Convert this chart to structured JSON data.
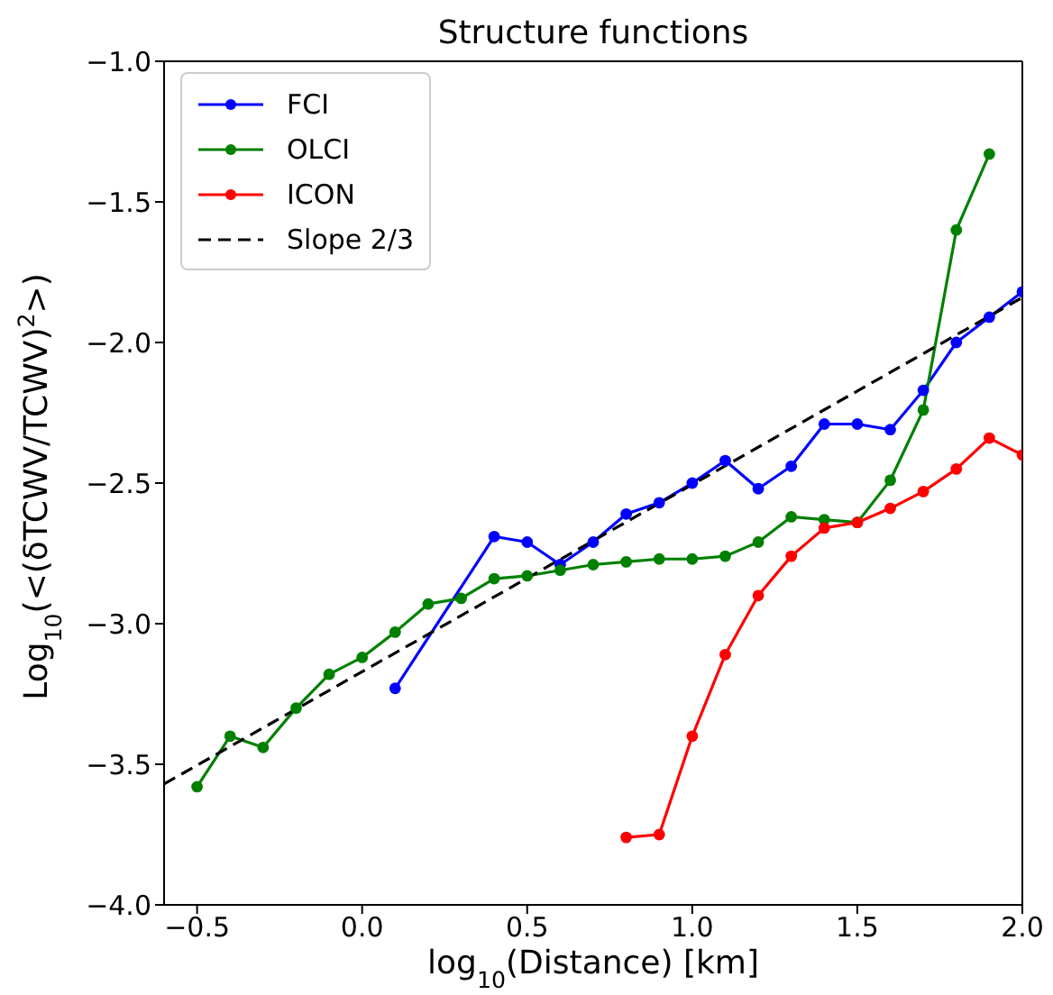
{
  "chart_data": {
    "type": "line",
    "title": "Structure functions",
    "xlabel": "log$_{10}$(Distance) [km]",
    "ylabel": "Log$_{10}$(<(δTCWV/TCWV)$^{2}$>)",
    "xlim": [
      -0.6,
      2.0
    ],
    "ylim": [
      -4.0,
      -1.0
    ],
    "xticks": [
      {
        "value": -0.5,
        "label": "−0.5"
      },
      {
        "value": 0,
        "label": "0.0"
      },
      {
        "value": 0.5,
        "label": "0.5"
      },
      {
        "value": 1,
        "label": "1.0"
      },
      {
        "value": 1.5,
        "label": "1.5"
      },
      {
        "value": 2,
        "label": "2.0"
      }
    ],
    "yticks": [
      {
        "value": -4,
        "label": "−4.0"
      },
      {
        "value": -3.5,
        "label": "−3.5"
      },
      {
        "value": -3,
        "label": "−3.0"
      },
      {
        "value": -2.5,
        "label": "−2.5"
      },
      {
        "value": -2,
        "label": "−2.0"
      },
      {
        "value": -1.5,
        "label": "−1.5"
      },
      {
        "value": -1,
        "label": "−1.0"
      }
    ],
    "legend": "top left",
    "marker": "circle",
    "series": [
      {
        "name": "FCI",
        "color": "#0000ff",
        "x": [
          0.1,
          0.4,
          0.5,
          0.6,
          0.7,
          0.8,
          0.9,
          1.0,
          1.1,
          1.2,
          1.3,
          1.4,
          1.5,
          1.6,
          1.7,
          1.8,
          1.9,
          2.0
        ],
        "values": [
          -3.23,
          -2.69,
          -2.71,
          -2.79,
          -2.71,
          -2.61,
          -2.57,
          -2.5,
          -2.42,
          -2.52,
          -2.44,
          -2.29,
          -2.29,
          -2.31,
          -2.17,
          -2.0,
          -1.91,
          -1.82
        ]
      },
      {
        "name": "OLCI",
        "color": "#008000",
        "x": [
          -0.5,
          -0.4,
          -0.3,
          -0.2,
          -0.1,
          0.0,
          0.1,
          0.2,
          0.3,
          0.4,
          0.5,
          0.6,
          0.7,
          0.8,
          0.9,
          1.0,
          1.1,
          1.2,
          1.3,
          1.4,
          1.5,
          1.6,
          1.7,
          1.8,
          1.9
        ],
        "values": [
          -3.58,
          -3.4,
          -3.44,
          -3.3,
          -3.18,
          -3.12,
          -3.03,
          -2.93,
          -2.91,
          -2.84,
          -2.83,
          -2.81,
          -2.79,
          -2.78,
          -2.77,
          -2.77,
          -2.76,
          -2.71,
          -2.62,
          -2.63,
          -2.64,
          -2.49,
          -2.24,
          -1.6,
          -1.33
        ]
      },
      {
        "name": "ICON",
        "color": "#ff0000",
        "x": [
          0.8,
          0.9,
          1.0,
          1.1,
          1.2,
          1.3,
          1.4,
          1.5,
          1.6,
          1.7,
          1.8,
          1.9,
          2.0
        ],
        "values": [
          -3.76,
          -3.75,
          -3.4,
          -3.11,
          -2.9,
          -2.76,
          -2.66,
          -2.64,
          -2.59,
          -2.53,
          -2.45,
          -2.34,
          -2.4
        ]
      },
      {
        "name": "Slope 2/3",
        "color": "#000000",
        "marker": "none",
        "line_style": "dashed",
        "x": [
          -0.6,
          2.0
        ],
        "values": [
          -3.57,
          -1.84
        ]
      }
    ]
  }
}
